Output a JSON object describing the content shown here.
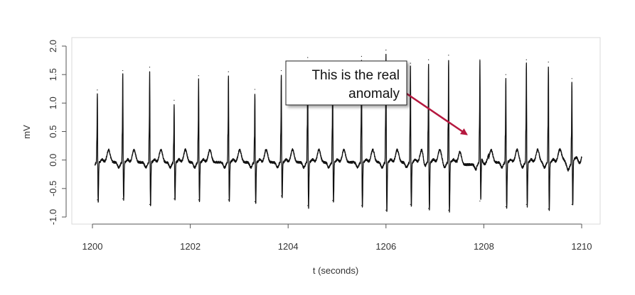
{
  "chart_data": {
    "type": "line",
    "xlabel": "t (seconds)",
    "ylabel": "mV",
    "xlim": [
      1200,
      1210
    ],
    "ylim": [
      -1.0,
      2.0
    ],
    "x_ticks": [
      1200,
      1202,
      1204,
      1206,
      1208,
      1210
    ],
    "x_tick_labels": [
      "1200",
      "1202",
      "1204",
      "1206",
      "1208",
      "1210"
    ],
    "y_ticks": [
      -1.0,
      -0.5,
      0.0,
      0.5,
      1.0,
      1.5,
      2.0
    ],
    "y_tick_labels": [
      "-1.0",
      "-0.5",
      "0.0",
      "0.5",
      "1.0",
      "1.5",
      "2.0"
    ],
    "grid": false,
    "series": [
      {
        "line_color": "#111111",
        "beats": [
          {
            "t": 1200.1,
            "r": 1.23,
            "s": -0.7
          },
          {
            "t": 1200.62,
            "r": 1.57,
            "s": -0.68
          },
          {
            "t": 1201.17,
            "r": 1.63,
            "s": -0.78
          },
          {
            "t": 1201.67,
            "r": 1.05,
            "s": -0.68
          },
          {
            "t": 1202.17,
            "r": 1.48,
            "s": -0.7
          },
          {
            "t": 1202.78,
            "r": 1.55,
            "s": -0.7
          },
          {
            "t": 1203.32,
            "r": 1.24,
            "s": -0.73
          },
          {
            "t": 1203.86,
            "r": 1.57,
            "s": -0.63
          },
          {
            "t": 1204.4,
            "r": 1.8,
            "s": -0.8
          },
          {
            "t": 1204.91,
            "r": 1.6,
            "s": -0.71
          },
          {
            "t": 1205.5,
            "r": 1.82,
            "s": -0.8
          },
          {
            "t": 1206.0,
            "r": 1.93,
            "s": -0.88
          },
          {
            "t": 1206.5,
            "r": 1.7,
            "s": -0.78
          },
          {
            "t": 1206.87,
            "r": 1.76,
            "s": -0.85
          },
          {
            "t": 1207.28,
            "r": 1.84,
            "s": -0.88
          },
          {
            "t": 1207.92,
            "r": 1.76,
            "s": -0.72
          },
          {
            "t": 1208.45,
            "r": 1.5,
            "s": -0.82
          },
          {
            "t": 1208.87,
            "r": 1.76,
            "s": -0.78
          },
          {
            "t": 1209.32,
            "r": 1.72,
            "s": -0.86
          },
          {
            "t": 1209.8,
            "r": 1.43,
            "s": -0.78
          }
        ]
      }
    ],
    "annotations": [
      {
        "text_lines": [
          "This is the real",
          "anomaly"
        ],
        "arrow_color": "#b5183f",
        "box_border_color": "#222222",
        "target": {
          "x": 1207.65,
          "y": 0.45
        }
      }
    ]
  }
}
